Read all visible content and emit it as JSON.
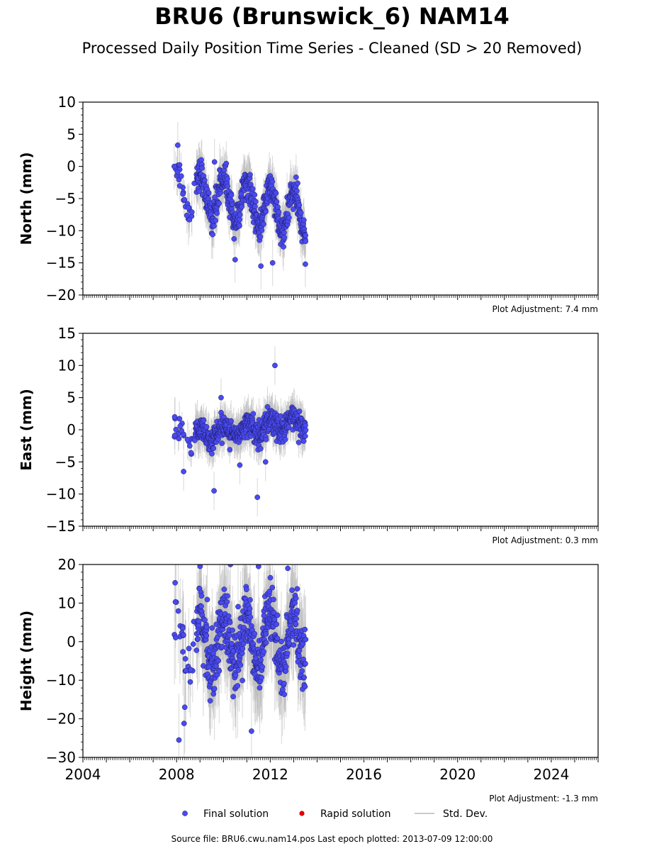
{
  "title": "BRU6 (Brunswick_6) NAM14",
  "subtitle": "Processed Daily Position Time Series - Cleaned (SD > 20 Removed)",
  "source": "Source file: BRU6.cwu.nam14.pos  Last epoch plotted: 2013-07-09 12:00:00",
  "colors": {
    "final": "#4a4af0",
    "rapid": "#dd0000",
    "stddev": "#b8b8b8"
  },
  "legend": {
    "final": "Final solution",
    "rapid": "Rapid solution",
    "stddev": "Std. Dev."
  },
  "chart_data": {
    "type": "scatter",
    "x_label_ticks": [
      2004,
      2008,
      2012,
      2016,
      2020,
      2024
    ],
    "xlim": [
      2004,
      2026
    ],
    "data_start": 2007.85,
    "data_end": 2013.52,
    "grid": false,
    "legend_placement": "bottom-center",
    "panels": [
      {
        "name": "north",
        "ylabel": "North (mm)",
        "ylim": [
          -20,
          10
        ],
        "yticks": [
          10,
          5,
          0,
          -5,
          -10,
          -15,
          -20
        ],
        "adjustment": "Plot Adjustment: 7.4 mm",
        "trend_mm_per_yr": -0.8,
        "seasonal_amp": 3.2,
        "noise_sd": 1.2,
        "outliers": [
          [
            2007.9,
            0.0
          ],
          [
            2008.05,
            3.3
          ],
          [
            2008.2,
            -1.5
          ],
          [
            2009.62,
            0.7
          ],
          [
            2010.5,
            -14.5
          ],
          [
            2011.6,
            -15.5
          ],
          [
            2012.1,
            -15.0
          ],
          [
            2013.5,
            -15.2
          ]
        ]
      },
      {
        "name": "east",
        "ylabel": "East (mm)",
        "ylim": [
          -15,
          15
        ],
        "yticks": [
          15,
          10,
          5,
          0,
          -5,
          -10,
          -15
        ],
        "adjustment": "Plot Adjustment: 0.3 mm",
        "trend_mm_per_yr": 0.45,
        "seasonal_amp": 1.1,
        "noise_sd": 1.0,
        "outliers": [
          [
            2007.92,
            2.0
          ],
          [
            2008.3,
            -6.5
          ],
          [
            2009.6,
            -9.5
          ],
          [
            2009.9,
            5.0
          ],
          [
            2011.45,
            -10.5
          ],
          [
            2012.2,
            10.0
          ],
          [
            2011.8,
            -5.0
          ],
          [
            2010.7,
            -5.5
          ]
        ]
      },
      {
        "name": "height",
        "ylabel": "Height (mm)",
        "ylim": [
          -30,
          20
        ],
        "yticks": [
          20,
          10,
          0,
          -10,
          -20,
          -30
        ],
        "adjustment": "Plot Adjustment: -1.3 mm",
        "trend_mm_per_yr": 0.0,
        "seasonal_amp": 6.5,
        "noise_sd": 4.0,
        "outliers": [
          [
            2007.95,
            10.3
          ],
          [
            2008.1,
            -25.5
          ],
          [
            2008.35,
            -17.0
          ],
          [
            2008.32,
            -21.2
          ],
          [
            2011.2,
            -23.2
          ],
          [
            2010.3,
            20.0
          ],
          [
            2011.5,
            19.5
          ],
          [
            2012.75,
            19.0
          ]
        ]
      }
    ]
  }
}
